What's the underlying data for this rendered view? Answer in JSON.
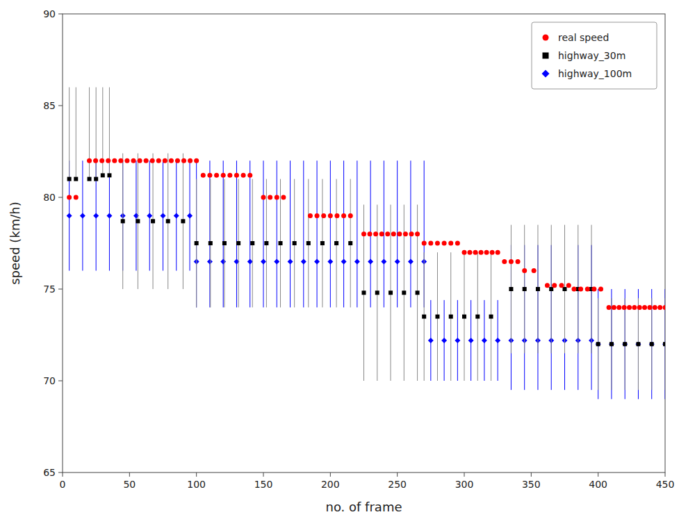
{
  "chart_data": {
    "type": "scatter",
    "x_label": "no. of frame",
    "y_label": "speed (km/h)",
    "xlim": [
      0,
      450
    ],
    "ylim": [
      65,
      90
    ],
    "xticks": [
      0,
      50,
      100,
      150,
      200,
      250,
      300,
      350,
      400,
      450
    ],
    "yticks": [
      65,
      70,
      75,
      80,
      85,
      90
    ],
    "grid": false,
    "legend": "upper right",
    "series": [
      {
        "name": "real speed",
        "color": "red",
        "marker": "circle",
        "x": [
          5,
          10,
          20,
          24.705882,
          29.411765,
          34.117647,
          38.823529,
          43.529412,
          48.235294,
          52.941176,
          57.647059,
          62.352941,
          67.058824,
          71.764706,
          76.470588,
          81.176471,
          85.882353,
          90.588235,
          95.294118,
          100,
          105,
          110,
          115,
          120,
          125,
          130,
          135,
          140,
          150,
          155,
          160,
          165,
          185,
          190,
          195,
          200,
          205,
          210,
          215,
          225,
          229.444444,
          233.888889,
          238.333333,
          242.777778,
          247.222222,
          251.666667,
          256.111111,
          260.555556,
          265,
          270,
          275,
          280,
          285,
          290,
          295,
          300,
          304.166667,
          308.333333,
          312.5,
          316.666667,
          320.833333,
          325,
          330,
          335,
          340,
          345,
          352,
          362,
          367.333333,
          372.666667,
          378,
          382,
          387,
          392,
          397,
          402,
          408,
          411.818182,
          415.636364,
          419.454545,
          423.272727,
          427.090909,
          430.909091,
          434.727273,
          438.545455,
          442.363636,
          446.181818,
          450
        ],
        "values": [
          80,
          80,
          82,
          82,
          82,
          82,
          82,
          82,
          82,
          82,
          82,
          82,
          82,
          82,
          82,
          82,
          82,
          82,
          82,
          82,
          81.2,
          81.2,
          81.2,
          81.2,
          81.2,
          81.2,
          81.2,
          81.2,
          80,
          80,
          80,
          80,
          79,
          79,
          79,
          79,
          79,
          79,
          79,
          78,
          78,
          78,
          78,
          78,
          78,
          78,
          78,
          78,
          78,
          77.5,
          77.5,
          77.5,
          77.5,
          77.5,
          77.5,
          77,
          77,
          77,
          77,
          77,
          77,
          77,
          76.5,
          76.5,
          76.5,
          76,
          76,
          75.2,
          75.2,
          75.2,
          75.2,
          75,
          75,
          75,
          75,
          75,
          74,
          74,
          74,
          74,
          74,
          74,
          74,
          74,
          74,
          74,
          74,
          74
        ]
      },
      {
        "name": "highway_30m",
        "color": "black",
        "marker": "square",
        "error_color": "#888888",
        "x": [
          5,
          10,
          20,
          25,
          30,
          35,
          45,
          56.25,
          67.5,
          78.75,
          90,
          100,
          110.454545,
          120.909091,
          131.363636,
          141.818182,
          152.272727,
          162.727273,
          173.181818,
          183.636364,
          194.090909,
          204.545455,
          215,
          225,
          235,
          245,
          255,
          265,
          270,
          280,
          290,
          300,
          310,
          320,
          335,
          345,
          355,
          365,
          375,
          385,
          395,
          400,
          410,
          420,
          430,
          440,
          450
        ],
        "values": [
          81,
          81,
          81,
          81,
          81.2,
          81.2,
          78.7,
          78.7,
          78.7,
          78.7,
          78.7,
          77.5,
          77.5,
          77.5,
          77.5,
          77.5,
          77.5,
          77.5,
          77.5,
          77.5,
          77.5,
          77.5,
          77.5,
          74.8,
          74.8,
          74.8,
          74.8,
          74.8,
          73.5,
          73.5,
          73.5,
          73.5,
          73.5,
          73.5,
          75,
          75,
          75,
          75,
          75,
          75,
          75,
          72,
          72,
          72,
          72,
          72,
          72
        ],
        "low": [
          81,
          81,
          81,
          81,
          81.2,
          81.2,
          75,
          75,
          75,
          75,
          75,
          74,
          74,
          74,
          74,
          74,
          74,
          74,
          74,
          74,
          74,
          74,
          74,
          70,
          70,
          70,
          70,
          70,
          70,
          70,
          70,
          70,
          70,
          70,
          71.5,
          71.5,
          71.5,
          71.5,
          71.5,
          71.5,
          71.5,
          69.5,
          69.5,
          69.5,
          69.5,
          69.5,
          69.5
        ],
        "high": [
          86,
          86,
          86,
          86,
          86,
          86,
          82.4,
          82.4,
          82.4,
          82.4,
          82.4,
          81,
          81,
          81,
          81,
          81,
          81,
          81,
          81,
          81,
          81,
          81,
          81,
          79.6,
          79.6,
          79.6,
          79.6,
          79.6,
          77,
          77,
          77,
          77,
          77,
          77,
          78.5,
          78.5,
          78.5,
          78.5,
          78.5,
          78.5,
          78.5,
          74.5,
          74.5,
          74.5,
          74.5,
          74.5,
          74.5
        ]
      },
      {
        "name": "highway_100m",
        "color": "blue",
        "marker": "diamond",
        "error_color": "blue",
        "x": [
          5,
          15,
          25,
          35,
          45,
          55,
          65,
          75,
          85,
          95,
          100,
          110,
          120,
          130,
          140,
          150,
          160,
          170,
          180,
          190,
          200,
          210,
          220,
          230,
          240,
          250,
          260,
          270,
          275,
          285,
          295,
          305,
          315,
          325,
          335,
          345,
          355,
          365,
          375,
          385,
          395,
          400,
          410,
          420,
          430,
          440,
          450
        ],
        "values": [
          79,
          79,
          79,
          79,
          79,
          79,
          79,
          79,
          79,
          79,
          76.5,
          76.5,
          76.5,
          76.5,
          76.5,
          76.5,
          76.5,
          76.5,
          76.5,
          76.5,
          76.5,
          76.5,
          76.5,
          76.5,
          76.5,
          76.5,
          76.5,
          76.5,
          72.2,
          72.2,
          72.2,
          72.2,
          72.2,
          72.2,
          72.2,
          72.2,
          72.2,
          72.2,
          72.2,
          72.2,
          72.2,
          72,
          72,
          72,
          72,
          72,
          72
        ],
        "low": [
          76,
          76,
          76,
          76,
          76,
          76,
          76,
          76,
          76,
          76,
          74,
          74,
          74,
          74,
          74,
          74,
          74,
          74,
          74,
          74,
          74,
          74,
          74,
          74,
          74,
          74,
          74,
          74,
          70,
          70,
          70,
          70,
          70,
          70,
          69.5,
          69.5,
          69.5,
          69.5,
          69.5,
          69.5,
          69.5,
          69,
          69,
          69,
          69,
          69,
          69
        ],
        "high": [
          82,
          82,
          82,
          82,
          82,
          82,
          82,
          82,
          82,
          82,
          82,
          82,
          82,
          82,
          82,
          82,
          82,
          82,
          82,
          82,
          82,
          82,
          82,
          82,
          82,
          82,
          82,
          82,
          74.4,
          74.4,
          74.4,
          74.4,
          74.4,
          74.4,
          77.4,
          77.4,
          77.4,
          77.4,
          77.4,
          77.4,
          77.4,
          75,
          75,
          75,
          75,
          75,
          75
        ]
      }
    ]
  }
}
